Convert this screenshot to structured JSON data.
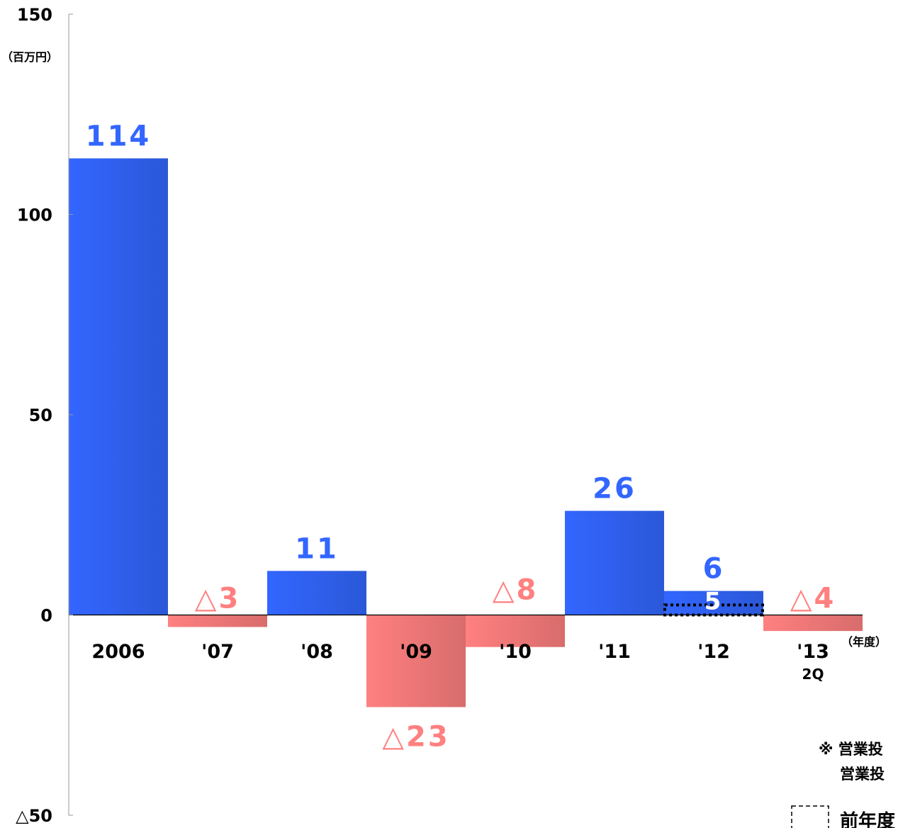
{
  "chart_data": {
    "type": "bar",
    "y_unit": "（百万円）",
    "x_unit": "（年度）",
    "ylim": [
      -50,
      150
    ],
    "yticks": [
      {
        "value": 150,
        "label": "150"
      },
      {
        "value": 100,
        "label": "100"
      },
      {
        "value": 50,
        "label": "50"
      },
      {
        "value": 0,
        "label": "0"
      },
      {
        "value": -50,
        "label": "△50"
      }
    ],
    "categories": [
      "2006",
      "'07",
      "'08",
      "'09",
      "'10",
      "'11",
      "'12",
      "'13"
    ],
    "category_sublabels": [
      "",
      "",
      "",
      "",
      "",
      "",
      "",
      "2Q"
    ],
    "values": [
      114,
      -3,
      11,
      -23,
      -8,
      26,
      6,
      -4
    ],
    "value_labels": [
      "114",
      "△3",
      "11",
      "△23",
      "△8",
      "26",
      "6",
      "△4"
    ],
    "reference": {
      "category": "'12",
      "value": 2.5,
      "label": "5"
    },
    "colors": {
      "positive": "#3366FF",
      "negative": "#FF8080"
    },
    "notes": [
      "※ 営業投",
      "営業投"
    ],
    "legend": {
      "label": "前年度"
    }
  }
}
